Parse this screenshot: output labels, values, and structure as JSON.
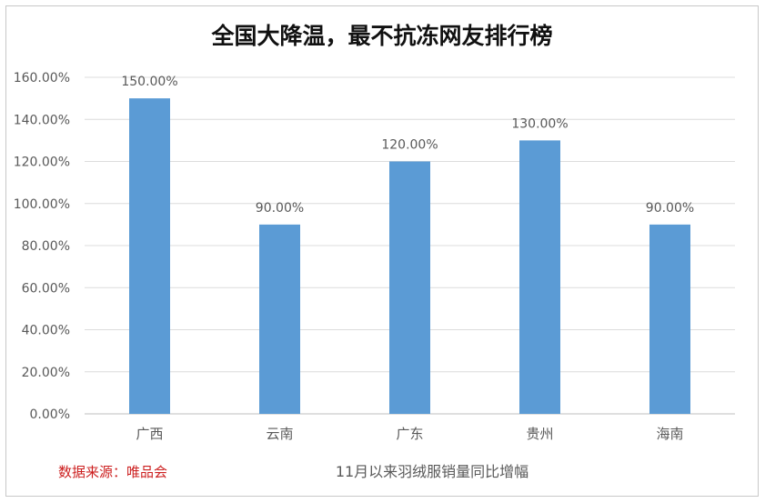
{
  "chart_data": {
    "type": "bar",
    "title": "全国大降温，最不抗冻网友排行榜",
    "categories": [
      "广西",
      "云南",
      "广东",
      "贵州",
      "海南"
    ],
    "values": [
      150,
      90,
      120,
      130,
      90
    ],
    "data_labels": [
      "150.00%",
      "90.00%",
      "120.00%",
      "130.00%",
      "90.00%"
    ],
    "yticks": [
      "0.00%",
      "20.00%",
      "40.00%",
      "60.00%",
      "80.00%",
      "100.00%",
      "120.00%",
      "140.00%",
      "160.00%"
    ],
    "ylim": [
      0,
      160
    ],
    "unit": "%",
    "grid": true,
    "bar_color": "#5b9bd5",
    "source_note": "数据来源：唯品会",
    "caption": "11月以来羽绒服销量同比增幅"
  }
}
